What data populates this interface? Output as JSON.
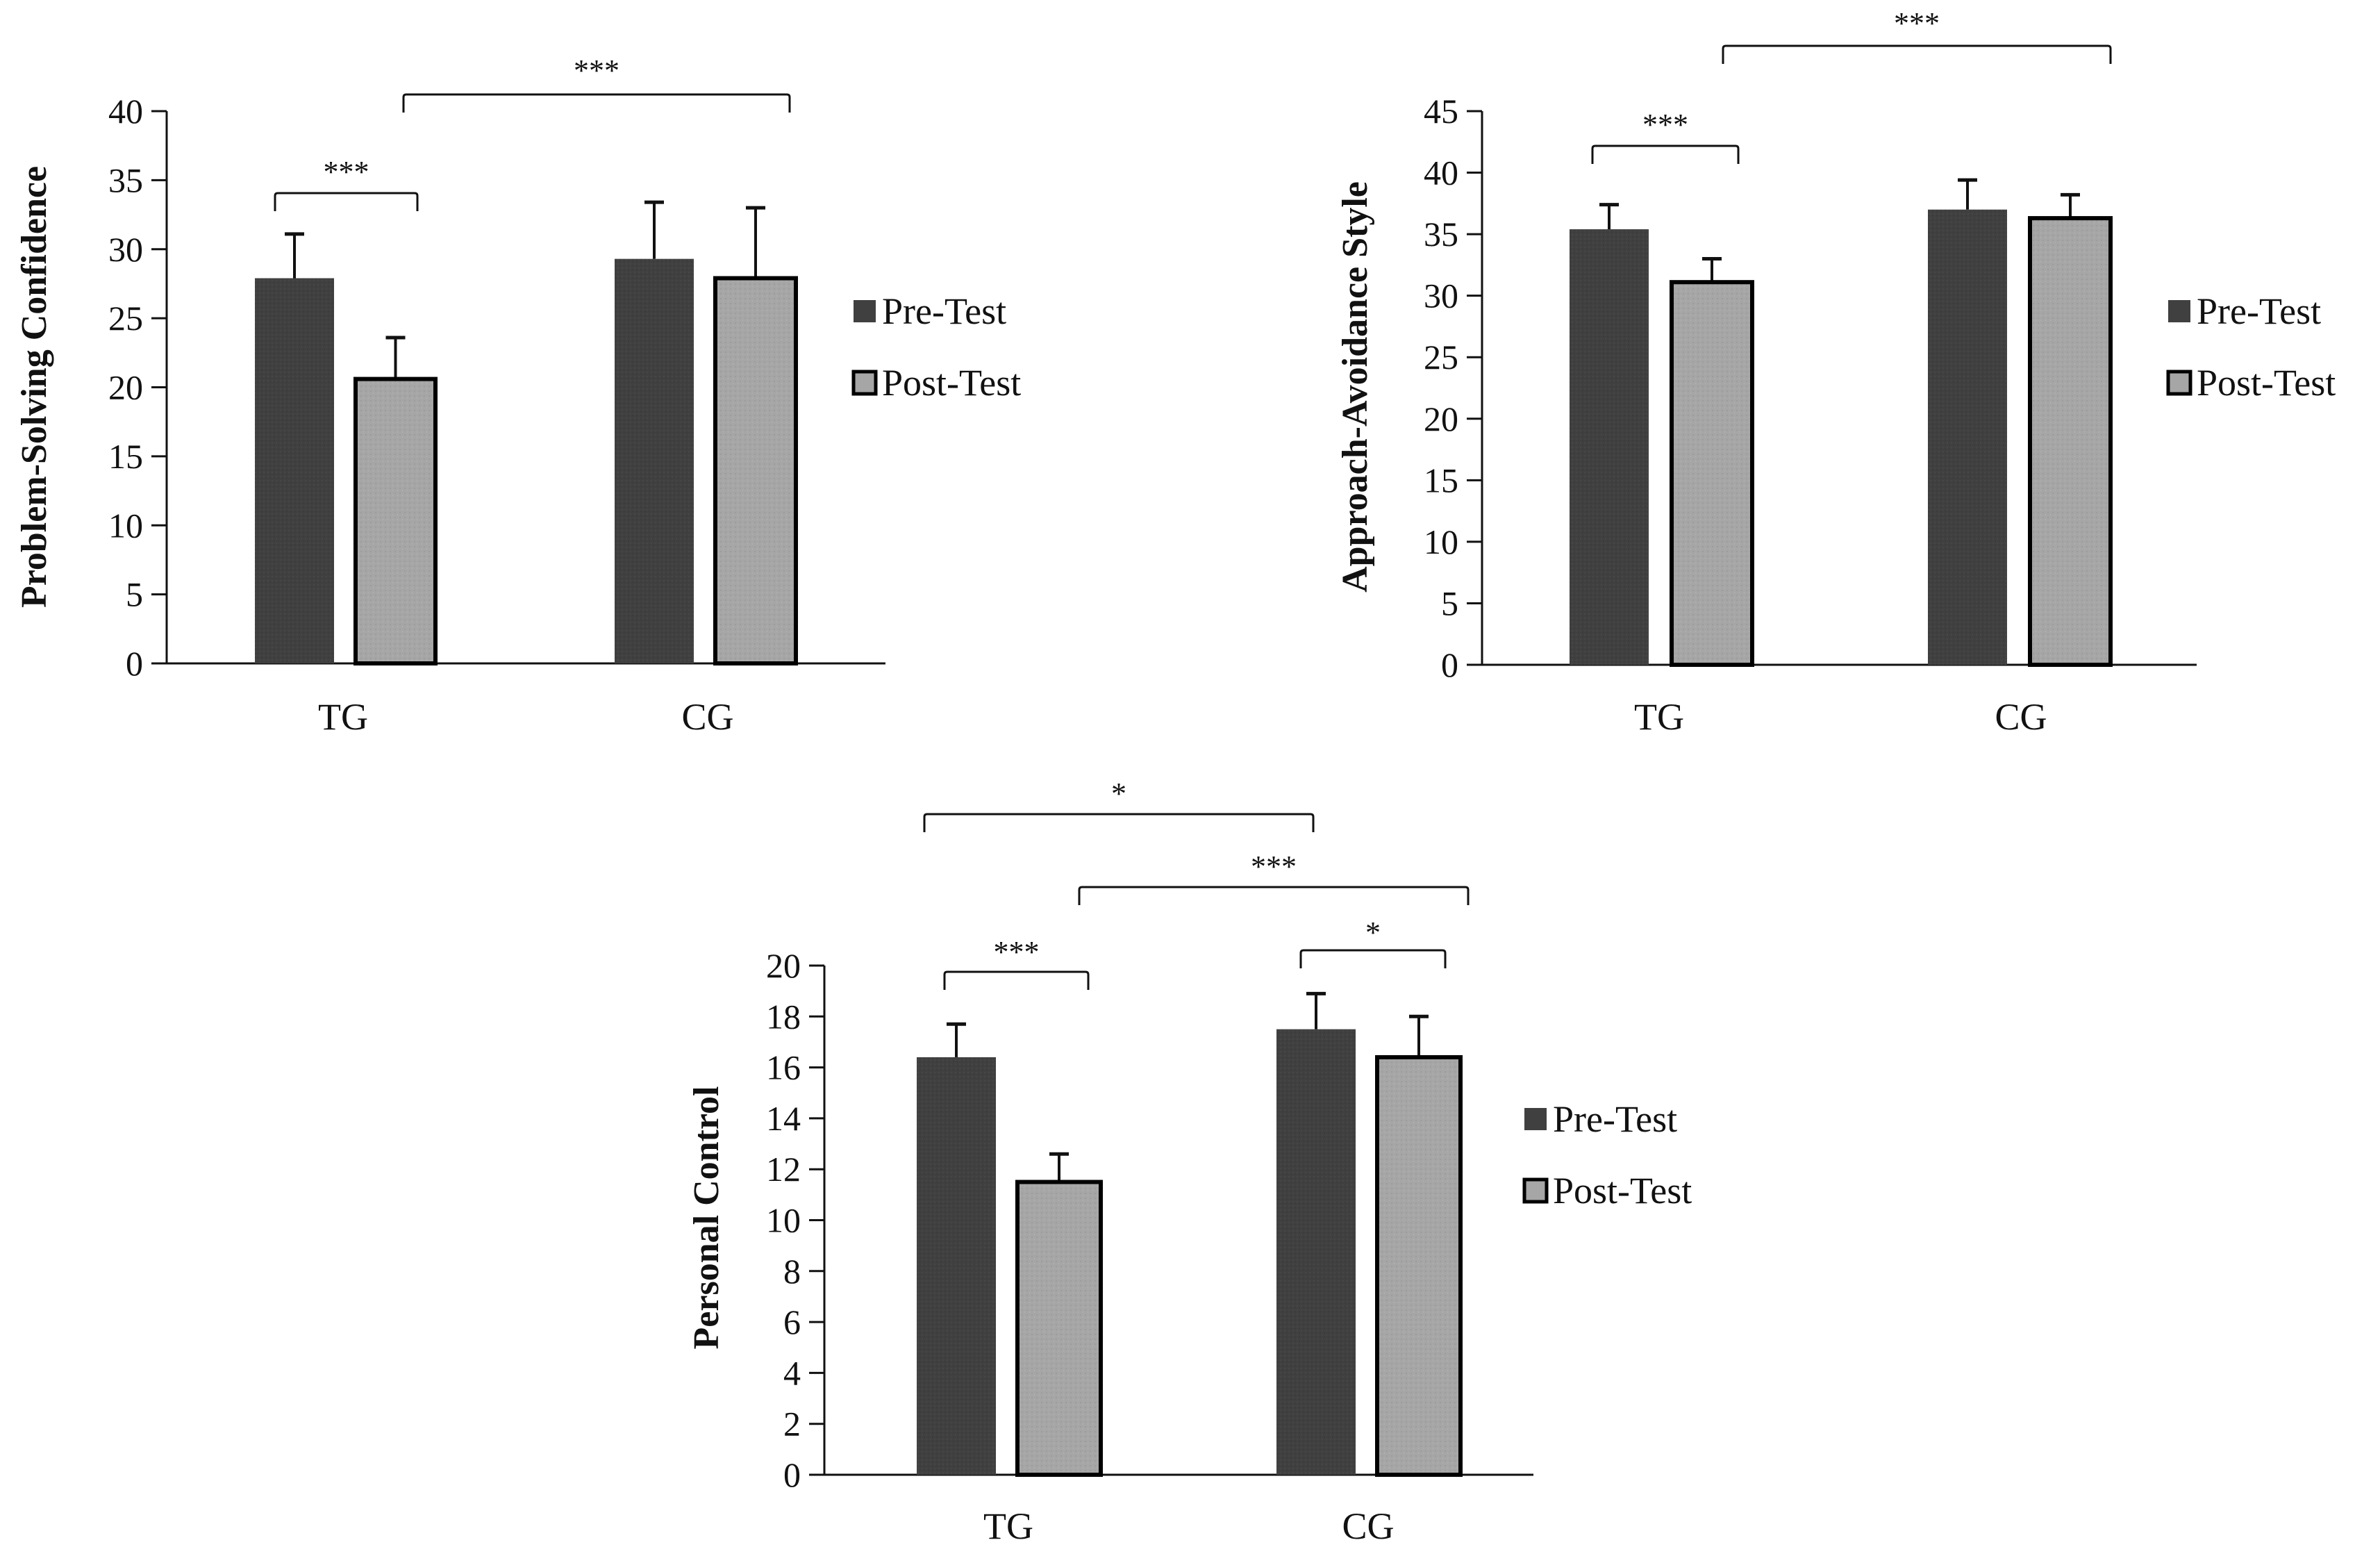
{
  "colors": {
    "pre": "#404040",
    "post": "#a6a6a6",
    "axis": "#111111"
  },
  "chart_data": [
    {
      "type": "bar",
      "title": "",
      "xlabel": "",
      "ylabel": "Problem-Solving Confidence",
      "categories": [
        "TG",
        "CG"
      ],
      "ylim": [
        0,
        40
      ],
      "yticks": [
        0,
        5,
        10,
        15,
        20,
        25,
        30,
        35,
        40
      ],
      "grid": false,
      "legend": {
        "placement": "right",
        "entries": [
          "Pre-Test",
          "Post-Test"
        ]
      },
      "series": [
        {
          "name": "Pre-Test",
          "values": [
            27.9,
            29.3
          ],
          "error": [
            3.2,
            4.1
          ]
        },
        {
          "name": "Post-Test",
          "values": [
            20.6,
            27.9
          ],
          "error": [
            3.0,
            5.1
          ]
        }
      ],
      "annotations": [
        {
          "label": "***",
          "from": "TG Pre-Test",
          "to": "TG Post-Test",
          "level": 1
        },
        {
          "label": "***",
          "from": "TG Post-Test",
          "to": "CG Post-Test",
          "level": 2
        }
      ]
    },
    {
      "type": "bar",
      "title": "",
      "xlabel": "",
      "ylabel": "Approach-Avoidance Style",
      "categories": [
        "TG",
        "CG"
      ],
      "ylim": [
        0,
        45
      ],
      "yticks": [
        0,
        5,
        10,
        15,
        20,
        25,
        30,
        35,
        40,
        45
      ],
      "grid": false,
      "legend": {
        "placement": "right",
        "entries": [
          "Pre-Test",
          "Post-Test"
        ]
      },
      "series": [
        {
          "name": "Pre-Test",
          "values": [
            35.4,
            37.0
          ],
          "error": [
            2.0,
            2.4
          ]
        },
        {
          "name": "Post-Test",
          "values": [
            31.1,
            36.3
          ],
          "error": [
            1.9,
            1.9
          ]
        }
      ],
      "annotations": [
        {
          "label": "***",
          "from": "TG Pre-Test",
          "to": "TG Post-Test",
          "level": 1
        },
        {
          "label": "***",
          "from": "TG Post-Test",
          "to": "CG Post-Test",
          "level": 2
        }
      ]
    },
    {
      "type": "bar",
      "title": "",
      "xlabel": "",
      "ylabel": "Personal Control",
      "categories": [
        "TG",
        "CG"
      ],
      "ylim": [
        0,
        20
      ],
      "yticks": [
        0,
        2,
        4,
        6,
        8,
        10,
        12,
        14,
        16,
        18,
        20
      ],
      "grid": false,
      "legend": {
        "placement": "right",
        "entries": [
          "Pre-Test",
          "Post-Test"
        ]
      },
      "series": [
        {
          "name": "Pre-Test",
          "values": [
            16.4,
            17.5
          ],
          "error": [
            1.3,
            1.4
          ]
        },
        {
          "name": "Post-Test",
          "values": [
            11.5,
            16.4
          ],
          "error": [
            1.1,
            1.6
          ]
        }
      ],
      "annotations": [
        {
          "label": "***",
          "from": "TG Pre-Test",
          "to": "TG Post-Test",
          "level": 1
        },
        {
          "label": "*",
          "from": "CG Pre-Test",
          "to": "CG Post-Test",
          "level": 1
        },
        {
          "label": "***",
          "from": "TG Post-Test",
          "to": "CG Post-Test",
          "level": 2
        },
        {
          "label": "*",
          "from": "TG Pre-Test",
          "to": "CG Pre-Test",
          "level": 3
        }
      ]
    }
  ]
}
